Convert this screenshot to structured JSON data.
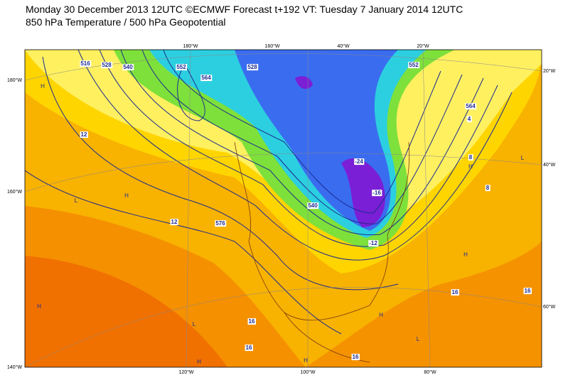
{
  "header": {
    "title": "Monday 30 December 2013 12UTC ©ECMWF Forecast t+192 VT: Tuesday 7 January 2014 12UTC",
    "subtitle": "850 hPa Temperature / 500 hPa Geopotential"
  },
  "map": {
    "top_labels": [
      "180°W",
      "160°W",
      "40°W",
      "20°W"
    ],
    "left_labels": [
      "180°W",
      "160°W",
      "140°W"
    ],
    "right_labels": [
      "20°W",
      "40°W",
      "60°W"
    ],
    "bottom_labels": [
      "120°W",
      "100°W",
      "80°W"
    ],
    "contour_labels": [
      "516",
      "528",
      "540",
      "552",
      "564",
      "576",
      "12",
      "12",
      "16",
      "16",
      "16",
      "16",
      "16",
      "-24",
      "-16",
      "4",
      "8",
      "8",
      "-12",
      "552",
      "564",
      "528",
      "540"
    ],
    "pressure_centers": [
      "H",
      "H",
      "L",
      "H",
      "L",
      "H",
      "H",
      "L",
      "H",
      "H",
      "H",
      "L"
    ]
  }
}
